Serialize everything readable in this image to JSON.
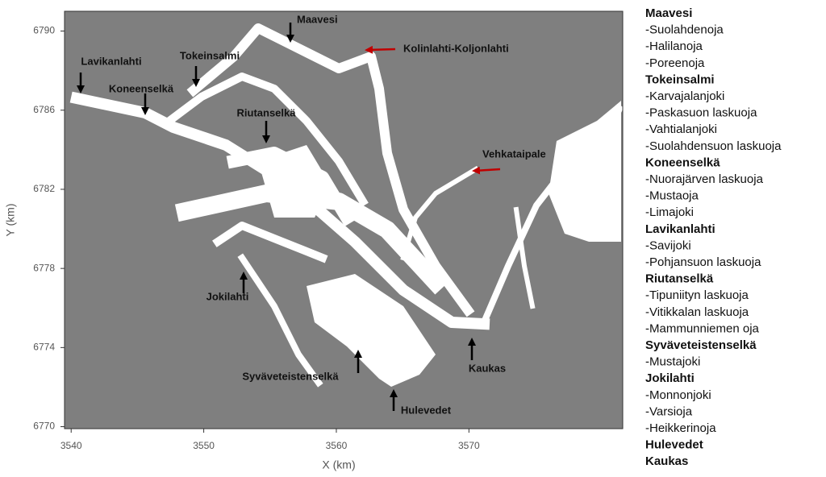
{
  "chart_data": {
    "type": "map",
    "x_label": "X (km)",
    "y_label": "Y (km)",
    "xlim": [
      3539.5,
      3581.6
    ],
    "ylim": [
      6769.9,
      6791
    ],
    "xticks": [
      3540,
      3550,
      3560,
      3570
    ],
    "yticks": [
      6770,
      6774,
      6778,
      6782,
      6786,
      6790
    ],
    "background_color": "#7f7f7f",
    "water_color": "#ffffff",
    "places": [
      {
        "name": "Maavesi",
        "arrow_color": "#000000"
      },
      {
        "name": "Kolinlahti-Koljonlahti",
        "arrow_color": "#c00000"
      },
      {
        "name": "Lavikanlahti",
        "arrow_color": "#000000"
      },
      {
        "name": "Tokeinsalmi",
        "arrow_color": "#000000"
      },
      {
        "name": "Koneenselkä",
        "arrow_color": "#000000"
      },
      {
        "name": "Riutanselkä",
        "arrow_color": "#000000"
      },
      {
        "name": "Vehkataipale",
        "arrow_color": "#c00000"
      },
      {
        "name": "Jokilahti",
        "arrow_color": "#000000"
      },
      {
        "name": "Syväveteistenselkä",
        "arrow_color": "#000000"
      },
      {
        "name": "Kaukas",
        "arrow_color": "#000000"
      },
      {
        "name": "Hulevedet",
        "arrow_color": "#000000"
      }
    ],
    "legend": [
      {
        "title": "Maavesi",
        "items": [
          "-Suolahdenoja",
          "-Halilanoja",
          "-Poreenoja"
        ]
      },
      {
        "title": "Tokeinsalmi",
        "items": [
          "-Karvajalanjoki",
          "-Paskasuon laskuoja",
          "-Vahtialanjoki",
          "-Suolahdensuon laskuoja"
        ]
      },
      {
        "title": "Koneenselkä",
        "items": [
          "-Nuorajärven laskuoja",
          "-Mustaoja",
          "-Limajoki"
        ]
      },
      {
        "title": "Lavikanlahti",
        "items": [
          "-Savijoki",
          "-Pohjansuon laskuoja"
        ]
      },
      {
        "title": "Riutanselkä",
        "items": [
          "-Tipuniityn laskuoja",
          "-Vitikkalan laskuoja",
          "-Mammunniemen oja"
        ]
      },
      {
        "title": "Syväveteistenselkä",
        "items": [
          "-Mustajoki"
        ]
      },
      {
        "title": "Jokilahti",
        "items": [
          "-Monnonjoki",
          "-Varsioja",
          "-Heikkerinoja"
        ]
      },
      {
        "title": "Hulevedet",
        "items": []
      },
      {
        "title": "Kaukas",
        "items": []
      }
    ]
  }
}
